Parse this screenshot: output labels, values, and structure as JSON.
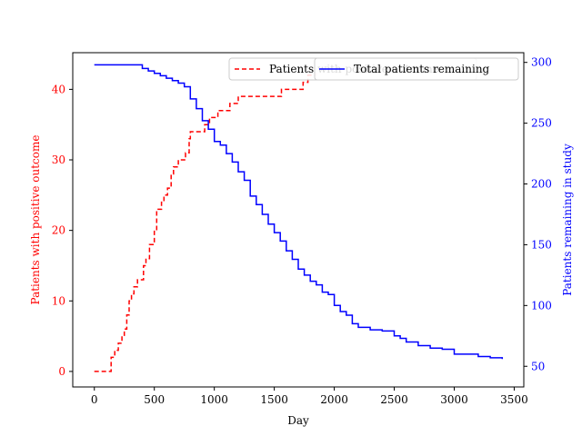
{
  "chart_data": {
    "type": "line",
    "xlabel": "Day",
    "ylabel_left": "Patients with positive outcome",
    "ylabel_right": "Patients remaining in study",
    "xlim": [
      -180,
      3580
    ],
    "ylim_left": [
      -2.2,
      45.2
    ],
    "ylim_right": [
      33,
      308
    ],
    "x_ticks": [
      0,
      500,
      1000,
      1500,
      2000,
      2500,
      3000,
      3500
    ],
    "y_ticks_left": [
      0,
      10,
      20,
      30,
      40
    ],
    "y_ticks_right": [
      50,
      100,
      150,
      200,
      250,
      300
    ],
    "grid": false,
    "legend_placement": "upper-right",
    "colors": {
      "positive": "#ff0000",
      "remaining": "#0000ff",
      "axes": "#000000"
    },
    "series": [
      {
        "name": "Patients with positive outcome",
        "axis": "left",
        "style": "dashed-step",
        "x": [
          0,
          140,
          170,
          200,
          230,
          250,
          270,
          290,
          310,
          330,
          360,
          410,
          430,
          460,
          480,
          500,
          520,
          560,
          580,
          610,
          640,
          660,
          700,
          720,
          760,
          790,
          800,
          820,
          860,
          920,
          960,
          1030,
          1060,
          1130,
          1200,
          1560,
          1740,
          1780,
          1850
        ],
        "y": [
          0,
          2,
          3,
          4,
          5,
          6,
          8,
          10,
          11,
          12,
          13,
          15,
          16,
          18,
          18,
          20,
          23,
          24,
          25,
          26,
          28,
          29,
          30,
          30,
          31,
          33,
          34,
          34,
          34,
          35,
          36,
          37,
          37,
          38,
          39,
          40,
          41,
          42,
          43
        ]
      },
      {
        "name": "Total patients remaining",
        "axis": "right",
        "style": "solid-step",
        "x": [
          0,
          180,
          350,
          400,
          450,
          500,
          550,
          600,
          650,
          700,
          750,
          800,
          850,
          900,
          950,
          1000,
          1050,
          1100,
          1150,
          1200,
          1250,
          1300,
          1350,
          1400,
          1450,
          1500,
          1550,
          1600,
          1650,
          1700,
          1750,
          1800,
          1850,
          1900,
          1950,
          2000,
          2050,
          2100,
          2150,
          2200,
          2300,
          2400,
          2500,
          2550,
          2600,
          2700,
          2800,
          2900,
          3000,
          3200,
          3300,
          3400
        ],
        "y": [
          298,
          298,
          298,
          295,
          293,
          291,
          289,
          287,
          285,
          283,
          280,
          270,
          262,
          252,
          245,
          235,
          232,
          225,
          218,
          210,
          203,
          190,
          183,
          175,
          167,
          160,
          153,
          145,
          138,
          130,
          125,
          120,
          117,
          111,
          109,
          100,
          95,
          92,
          85,
          82,
          80,
          79,
          75,
          73,
          70,
          67,
          65,
          64,
          60,
          58,
          57,
          56
        ]
      }
    ]
  }
}
